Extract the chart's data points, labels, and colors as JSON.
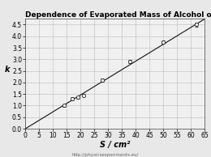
{
  "title": "Dependence of Evaporated Mass of Alcohol on Surface Area of Liquid",
  "ylabel": "k",
  "xlabel": "S / cm²",
  "xlim": [
    0,
    65
  ],
  "ylim": [
    0,
    4.75
  ],
  "xticks": [
    0,
    5,
    10,
    15,
    20,
    25,
    30,
    35,
    40,
    45,
    50,
    55,
    60,
    65
  ],
  "yticks": [
    0.0,
    0.5,
    1.0,
    1.5,
    2.0,
    2.5,
    3.0,
    3.5,
    4.0,
    4.5
  ],
  "data_x": [
    14,
    17,
    19,
    21,
    28,
    38,
    50,
    62
  ],
  "data_y": [
    1.0,
    1.3,
    1.35,
    1.45,
    2.1,
    2.9,
    3.75,
    4.5
  ],
  "yerr": [
    0.06,
    0.06,
    0.06,
    0.06,
    0.07,
    0.08,
    0.07,
    0.08
  ],
  "line_slope": 0.073,
  "line_intercept": 0.0,
  "bg_color": "#e8e8e8",
  "grid_color": "#bbbbbb",
  "plot_bg_color": "#f0f0f0",
  "point_color": "white",
  "point_edge_color": "#222222",
  "line_color": "#111111",
  "watermark": "http://physicsexperiments.eu/",
  "title_fontsize": 6.5,
  "tick_fontsize": 5.5,
  "label_fontsize": 7.0
}
